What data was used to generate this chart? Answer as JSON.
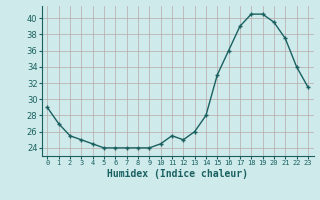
{
  "x": [
    0,
    1,
    2,
    3,
    4,
    5,
    6,
    7,
    8,
    9,
    10,
    11,
    12,
    13,
    14,
    15,
    16,
    17,
    18,
    19,
    20,
    21,
    22,
    23
  ],
  "y": [
    29,
    27,
    25.5,
    25,
    24.5,
    24,
    24,
    24,
    24,
    24,
    24.5,
    25.5,
    25,
    26,
    28,
    33,
    36,
    39,
    40.5,
    40.5,
    39.5,
    37.5,
    34,
    31.5
  ],
  "bg_color": "#ceeaea",
  "grid_color": "#b8a8a8",
  "line_color": "#1a6060",
  "marker_color": "#1a6060",
  "xlabel": "Humidex (Indice chaleur)",
  "xlim": [
    -0.5,
    23.5
  ],
  "ylim": [
    23,
    41.5
  ],
  "yticks": [
    24,
    26,
    28,
    30,
    32,
    34,
    36,
    38,
    40
  ],
  "xtick_labels": [
    "0",
    "1",
    "2",
    "3",
    "4",
    "5",
    "6",
    "7",
    "8",
    "9",
    "10",
    "11",
    "12",
    "13",
    "14",
    "15",
    "16",
    "17",
    "18",
    "19",
    "20",
    "21",
    "22",
    "23"
  ],
  "font_color": "#1a6060",
  "xlabel_fontsize": 7,
  "ytick_fontsize": 6,
  "xtick_fontsize": 5
}
